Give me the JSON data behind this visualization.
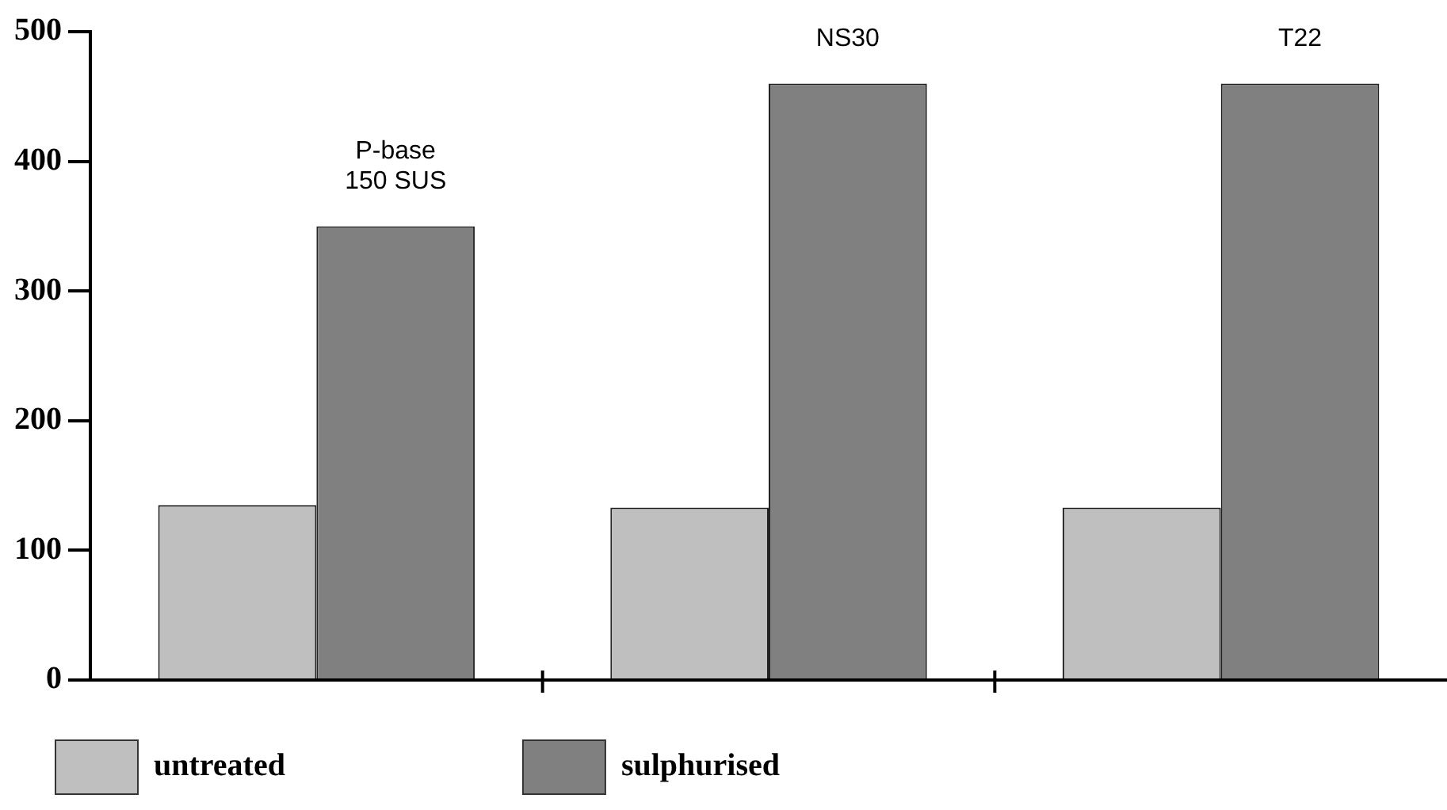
{
  "chart_data": {
    "type": "bar",
    "categories": [
      "P-base 150 SUS",
      "NS30",
      "T22"
    ],
    "series": [
      {
        "name": "untreated",
        "color": "#bfbfbf",
        "values": [
          135,
          133,
          133
        ]
      },
      {
        "name": "sulphurised",
        "color": "#808080",
        "values": [
          350,
          460,
          460
        ]
      }
    ],
    "ylim": [
      0,
      500
    ],
    "yticks": [
      0,
      100,
      200,
      300,
      400,
      500
    ],
    "grid": false,
    "legend": "bottom left"
  }
}
